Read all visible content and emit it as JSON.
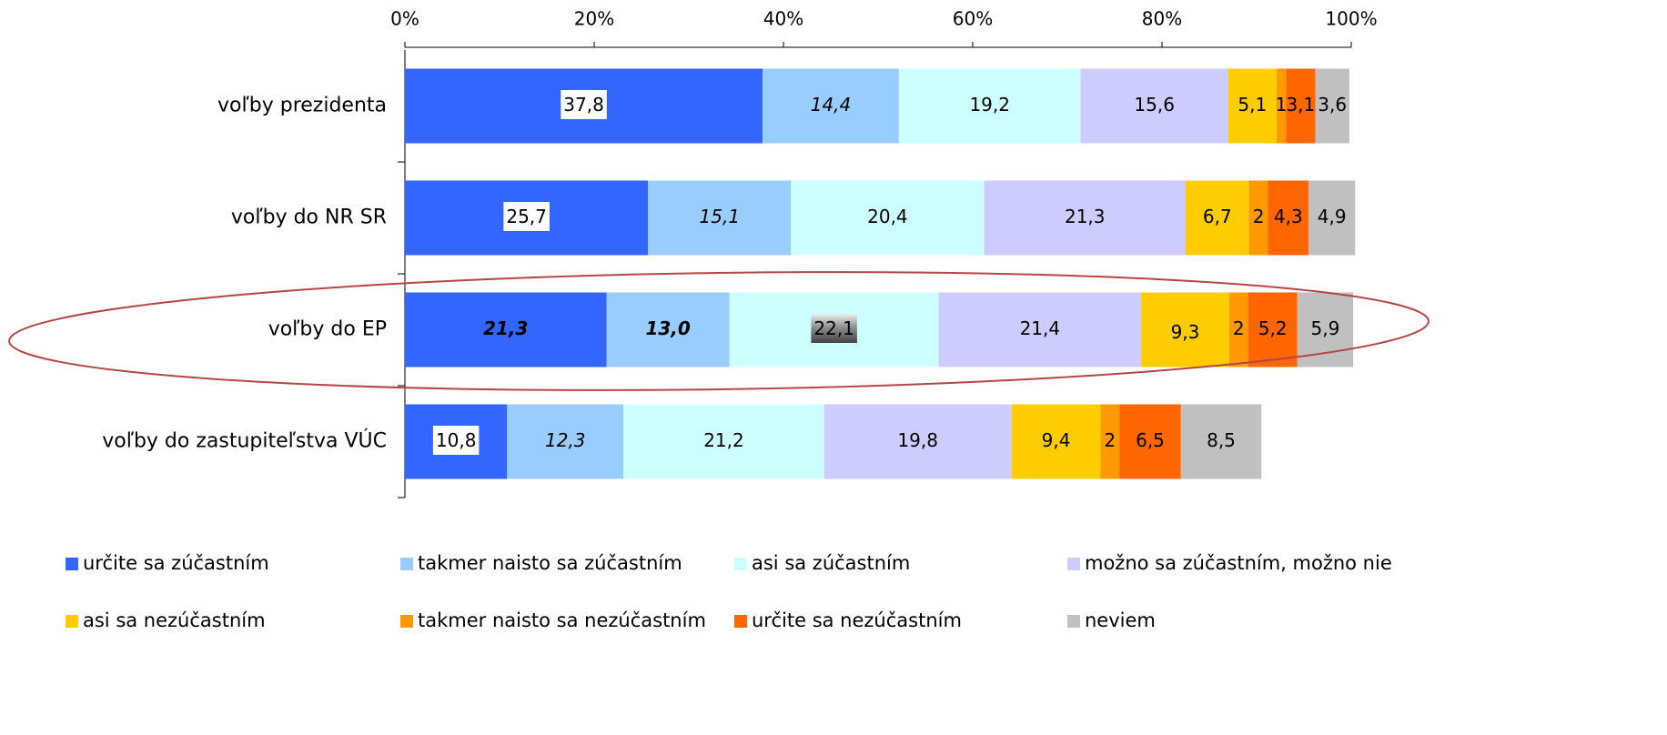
{
  "chart_data": {
    "type": "bar",
    "orientation": "horizontal",
    "stacked": true,
    "categories": [
      "voľby prezidenta",
      "voľby do NR SR",
      "voľby do EP",
      "voľby do zastupiteľstva VÚC"
    ],
    "xlim": [
      0,
      100
    ],
    "xticks": [
      {
        "value": 0,
        "label": "0%"
      },
      {
        "value": 20,
        "label": "20%"
      },
      {
        "value": 40,
        "label": "40%"
      },
      {
        "value": 60,
        "label": "60%"
      },
      {
        "value": 80,
        "label": "80%"
      },
      {
        "value": 100,
        "label": "100%"
      }
    ],
    "legend": "bottom",
    "series": [
      {
        "name": "určite sa zúčastním",
        "color": "#3366FF",
        "values": [
          37.8,
          25.7,
          21.3,
          10.8
        ],
        "value_labels": [
          "37,8",
          "25,7",
          "21,3",
          "10,8"
        ]
      },
      {
        "name": "takmer naisto sa zúčastním",
        "color": "#99CCFF",
        "values": [
          14.4,
          15.1,
          13.0,
          12.3
        ],
        "value_labels": [
          "14,4",
          "15,1",
          "13,0",
          "12,3"
        ]
      },
      {
        "name": "asi sa zúčastním",
        "color": "#CCFFFF",
        "values": [
          19.2,
          20.4,
          22.1,
          21.2
        ],
        "value_labels": [
          "19,2",
          "20,4",
          "22,1",
          "21,2"
        ]
      },
      {
        "name": "možno sa zúčastním, možno nie",
        "color": "#CCCCFF",
        "values": [
          15.6,
          21.3,
          21.4,
          19.8
        ],
        "value_labels": [
          "15,6",
          "21,3",
          "21,4",
          "19,8"
        ]
      },
      {
        "name": "asi sa nezúčastním",
        "color": "#FFCC00",
        "values": [
          5.1,
          6.7,
          9.3,
          9.4
        ],
        "value_labels": [
          "5,1",
          "6,7",
          "9,3",
          "9,4"
        ]
      },
      {
        "name": "takmer naisto sa nezúčastním",
        "color": "#FF9900",
        "values": [
          1,
          2,
          2,
          2
        ],
        "value_labels": [
          "1",
          "2",
          "2",
          "2"
        ]
      },
      {
        "name": "určite sa nezúčastním",
        "color": "#FF6600",
        "values": [
          3.1,
          4.3,
          5.2,
          6.5
        ],
        "value_labels": [
          "3,1",
          "4,3",
          "5,2",
          "6,5"
        ]
      },
      {
        "name": "neviem",
        "color": "#C0C0C0",
        "values": [
          3.6,
          4.9,
          5.9,
          8.5
        ],
        "value_labels": [
          "3,6",
          "4,9",
          "5,9",
          "8,5"
        ]
      }
    ]
  }
}
